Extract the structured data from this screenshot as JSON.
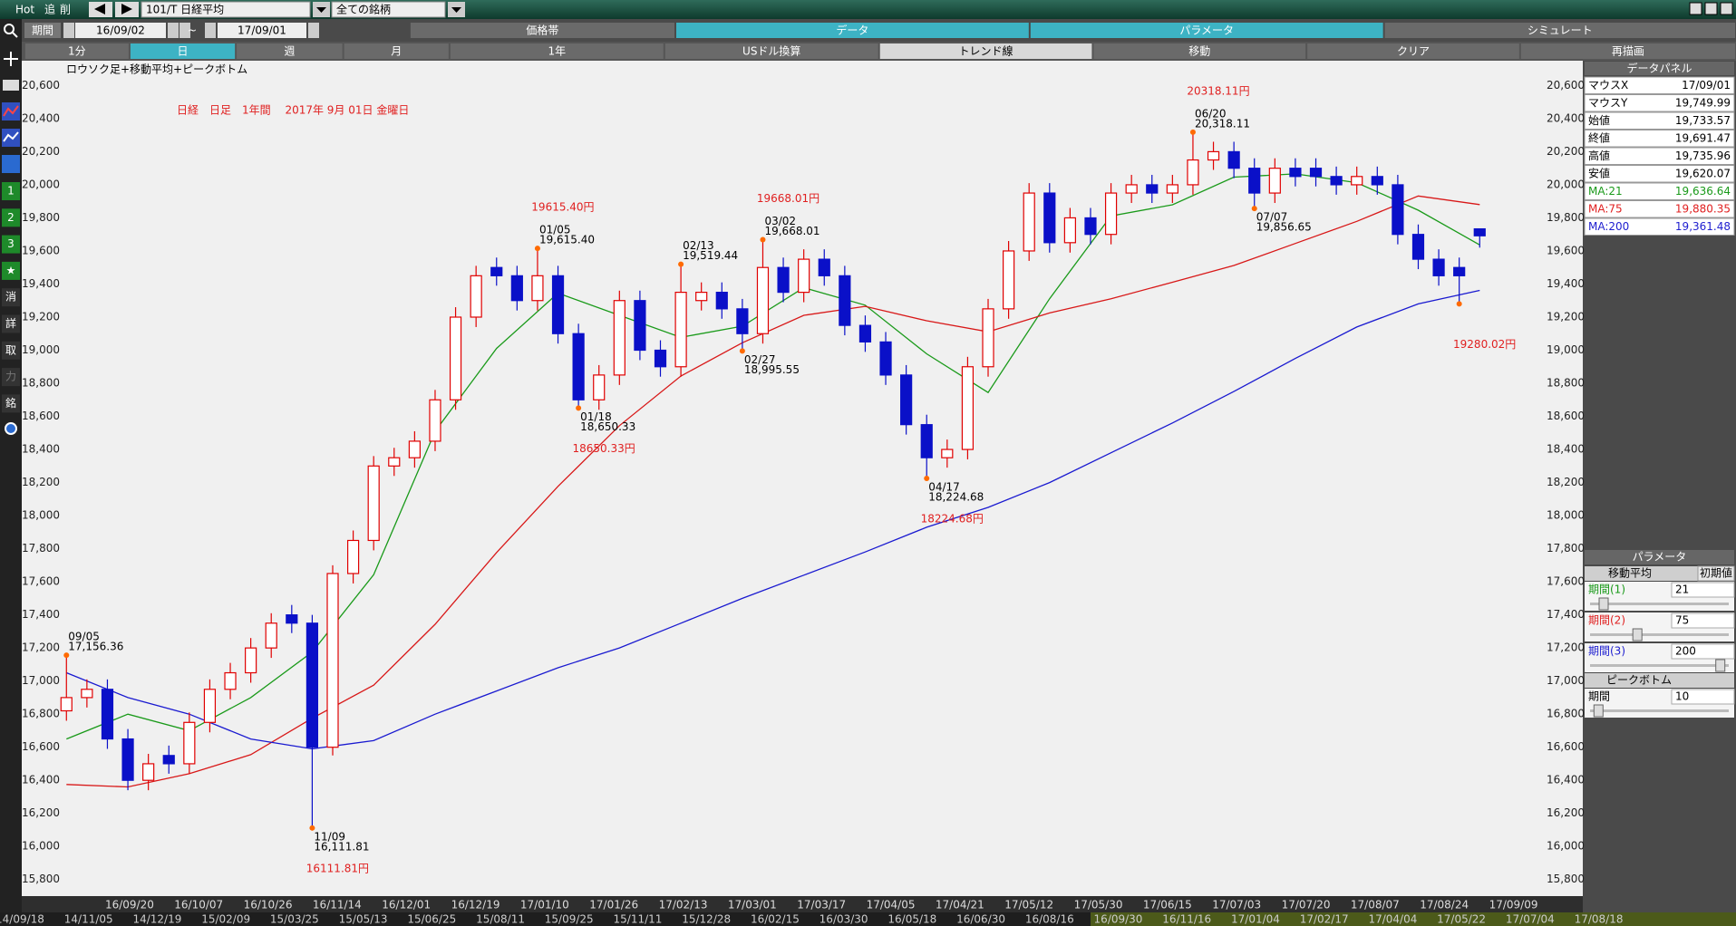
{
  "toolbar": {
    "items": [
      "Hot",
      "追",
      "削"
    ],
    "symbol": "101/T 日経平均",
    "universe": "全ての銘柄",
    "period_label": "期間",
    "from": "16/09/02",
    "sep": "~",
    "to": "17/09/01"
  },
  "tabs": [
    {
      "label": "価格帯",
      "active": false
    },
    {
      "label": "データ",
      "active": true
    },
    {
      "label": "パラメータ",
      "active": true
    },
    {
      "label": "シミュレート",
      "active": false
    }
  ],
  "buttons": [
    {
      "label": "1分",
      "style": "normal"
    },
    {
      "label": "日",
      "style": "active"
    },
    {
      "label": "週",
      "style": "normal"
    },
    {
      "label": "月",
      "style": "normal"
    },
    {
      "label": "1年",
      "style": "normal"
    },
    {
      "label": "USドル換算",
      "style": "normal"
    },
    {
      "label": "トレンド線",
      "style": "light"
    },
    {
      "label": "移動",
      "style": "normal"
    },
    {
      "label": "クリア",
      "style": "normal"
    },
    {
      "label": "再描画",
      "style": "normal"
    }
  ],
  "side_icons": [
    "1",
    "2",
    "3",
    "★",
    "消",
    "詳",
    "取",
    "力",
    "銘"
  ],
  "chart": {
    "type": "candlestick",
    "subtitle": "ロウソク足+移動平均+ピークボトム",
    "title": "日経　日足　1年間　 2017年 9月 01日 金曜日",
    "ylim": [
      15700,
      20750
    ],
    "yticks": [
      {
        "value": 15800,
        "label": "15,800"
      },
      {
        "value": 16000,
        "label": "16,000"
      },
      {
        "value": 16200,
        "label": "16,200"
      },
      {
        "value": 16400,
        "label": "16,400"
      },
      {
        "value": 16600,
        "label": "16,600"
      },
      {
        "value": 16800,
        "label": "16,800"
      },
      {
        "value": 17000,
        "label": "17,000"
      },
      {
        "value": 17200,
        "label": "17,200"
      },
      {
        "value": 17400,
        "label": "17,400"
      },
      {
        "value": 17600,
        "label": "17,600"
      },
      {
        "value": 17800,
        "label": "17,800"
      },
      {
        "value": 18000,
        "label": "18,000"
      },
      {
        "value": 18200,
        "label": "18,200"
      },
      {
        "value": 18400,
        "label": "18,400"
      },
      {
        "value": 18600,
        "label": "18,600"
      },
      {
        "value": 18800,
        "label": "18,800"
      },
      {
        "value": 19000,
        "label": "19,000"
      },
      {
        "value": 19200,
        "label": "19,200"
      },
      {
        "value": 19400,
        "label": "19,400"
      },
      {
        "value": 19600,
        "label": "19,600"
      },
      {
        "value": 19800,
        "label": "19,800"
      },
      {
        "value": 20000,
        "label": "20,000"
      },
      {
        "value": 20200,
        "label": "20,200"
      },
      {
        "value": 20400,
        "label": "20,400"
      },
      {
        "value": 20600,
        "label": "20,600"
      }
    ],
    "xticks": [
      "16/09/20",
      "16/10/07",
      "16/10/26",
      "16/11/14",
      "16/12/01",
      "16/12/19",
      "17/01/10",
      "17/01/26",
      "17/02/13",
      "17/03/01",
      "17/03/17",
      "17/04/05",
      "17/04/21",
      "17/05/12",
      "17/05/30",
      "17/06/15",
      "17/07/03",
      "17/07/20",
      "17/08/07",
      "17/08/24",
      "17/09/09"
    ],
    "overview_dates": [
      "14/09/18",
      "14/11/05",
      "14/12/19",
      "15/02/09",
      "15/03/25",
      "15/05/13",
      "15/06/25",
      "15/08/11",
      "15/09/25",
      "15/11/11",
      "15/12/28",
      "16/02/15",
      "16/03/30",
      "16/05/18",
      "16/06/30",
      "16/08/16",
      "16/09/30",
      "16/11/16",
      "17/01/04",
      "17/02/17",
      "17/04/04",
      "17/05/22",
      "17/07/04",
      "17/08/18"
    ],
    "up_color": "#e00000",
    "down_color": "#0a10c8",
    "peak_color": "#ff6a00",
    "caption_color": "#e02020",
    "candles": [
      {
        "o": 16820,
        "h": 17156.36,
        "l": 16760,
        "c": 16900,
        "peak": {
          "date": "09/05",
          "label": "17,156.36"
        }
      },
      {
        "o": 16900,
        "h": 17010,
        "l": 16840,
        "c": 16950
      },
      {
        "o": 16950,
        "h": 17010,
        "l": 16590,
        "c": 16650
      },
      {
        "o": 16650,
        "h": 16710,
        "l": 16340,
        "c": 16400
      },
      {
        "o": 16400,
        "h": 16560,
        "l": 16340,
        "c": 16500
      },
      {
        "o": 16550,
        "h": 16610,
        "l": 16440,
        "c": 16500
      },
      {
        "o": 16500,
        "h": 16810,
        "l": 16440,
        "c": 16750
      },
      {
        "o": 16750,
        "h": 17010,
        "l": 16690,
        "c": 16950
      },
      {
        "o": 16950,
        "h": 17110,
        "l": 16890,
        "c": 17050
      },
      {
        "o": 17050,
        "h": 17260,
        "l": 16990,
        "c": 17200
      },
      {
        "o": 17200,
        "h": 17410,
        "l": 17140,
        "c": 17350
      },
      {
        "o": 17400,
        "h": 17460,
        "l": 17290,
        "c": 17350
      },
      {
        "o": 17350,
        "h": 17400,
        "l": 16111.81,
        "c": 16600,
        "peak": {
          "date": "11/09",
          "label": "16,111.81",
          "caption": "16111.81円"
        }
      },
      {
        "o": 16600,
        "h": 17700,
        "l": 16550,
        "c": 17650
      },
      {
        "o": 17650,
        "h": 17910,
        "l": 17590,
        "c": 17850
      },
      {
        "o": 17850,
        "h": 18360,
        "l": 17790,
        "c": 18300
      },
      {
        "o": 18300,
        "h": 18410,
        "l": 18240,
        "c": 18350
      },
      {
        "o": 18350,
        "h": 18510,
        "l": 18290,
        "c": 18450
      },
      {
        "o": 18450,
        "h": 18760,
        "l": 18390,
        "c": 18700
      },
      {
        "o": 18700,
        "h": 19260,
        "l": 18640,
        "c": 19200
      },
      {
        "o": 19200,
        "h": 19510,
        "l": 19140,
        "c": 19450
      },
      {
        "o": 19500,
        "h": 19560,
        "l": 19390,
        "c": 19450
      },
      {
        "o": 19450,
        "h": 19510,
        "l": 19240,
        "c": 19300
      },
      {
        "o": 19300,
        "h": 19615.4,
        "l": 19240,
        "c": 19450,
        "peak": {
          "date": "01/05",
          "label": "19,615.40",
          "caption": "19615.40円"
        }
      },
      {
        "o": 19450,
        "h": 19510,
        "l": 19040,
        "c": 19100
      },
      {
        "o": 19100,
        "h": 19160,
        "l": 18650.33,
        "c": 18700,
        "peak": {
          "date": "01/18",
          "label": "18,650.33",
          "caption": "18650.33円"
        }
      },
      {
        "o": 18700,
        "h": 18910,
        "l": 18640,
        "c": 18850
      },
      {
        "o": 18850,
        "h": 19360,
        "l": 18790,
        "c": 19300
      },
      {
        "o": 19300,
        "h": 19360,
        "l": 18940,
        "c": 19000
      },
      {
        "o": 19000,
        "h": 19060,
        "l": 18840,
        "c": 18900
      },
      {
        "o": 18900,
        "h": 19519.44,
        "l": 18840,
        "c": 19350,
        "peak": {
          "date": "02/13",
          "label": "19,519.44"
        }
      },
      {
        "o": 19300,
        "h": 19410,
        "l": 19240,
        "c": 19350
      },
      {
        "o": 19350,
        "h": 19410,
        "l": 19190,
        "c": 19250
      },
      {
        "o": 19250,
        "h": 19310,
        "l": 18995.55,
        "c": 19100,
        "peak": {
          "date": "02/27",
          "label": "18,995.55"
        }
      },
      {
        "o": 19100,
        "h": 19668.01,
        "l": 19040,
        "c": 19500,
        "peak": {
          "date": "03/02",
          "label": "19,668.01",
          "caption": "19668.01円"
        }
      },
      {
        "o": 19500,
        "h": 19560,
        "l": 19290,
        "c": 19350
      },
      {
        "o": 19350,
        "h": 19610,
        "l": 19290,
        "c": 19550
      },
      {
        "o": 19550,
        "h": 19610,
        "l": 19390,
        "c": 19450
      },
      {
        "o": 19450,
        "h": 19510,
        "l": 19090,
        "c": 19150
      },
      {
        "o": 19150,
        "h": 19210,
        "l": 18990,
        "c": 19050
      },
      {
        "o": 19050,
        "h": 19110,
        "l": 18790,
        "c": 18850
      },
      {
        "o": 18850,
        "h": 18910,
        "l": 18490,
        "c": 18550
      },
      {
        "o": 18550,
        "h": 18610,
        "l": 18224.68,
        "c": 18350,
        "peak": {
          "date": "04/17",
          "label": "18,224.68",
          "caption": "18224.68円"
        }
      },
      {
        "o": 18350,
        "h": 18460,
        "l": 18290,
        "c": 18400
      },
      {
        "o": 18400,
        "h": 18960,
        "l": 18340,
        "c": 18900
      },
      {
        "o": 18900,
        "h": 19310,
        "l": 18840,
        "c": 19250
      },
      {
        "o": 19250,
        "h": 19660,
        "l": 19190,
        "c": 19600
      },
      {
        "o": 19600,
        "h": 20010,
        "l": 19540,
        "c": 19950
      },
      {
        "o": 19950,
        "h": 20010,
        "l": 19590,
        "c": 19650
      },
      {
        "o": 19650,
        "h": 19860,
        "l": 19590,
        "c": 19800
      },
      {
        "o": 19800,
        "h": 19860,
        "l": 19640,
        "c": 19700
      },
      {
        "o": 19700,
        "h": 20010,
        "l": 19640,
        "c": 19950
      },
      {
        "o": 19950,
        "h": 20060,
        "l": 19890,
        "c": 20000
      },
      {
        "o": 20000,
        "h": 20060,
        "l": 19890,
        "c": 19950
      },
      {
        "o": 19950,
        "h": 20060,
        "l": 19890,
        "c": 20000
      },
      {
        "o": 20000,
        "h": 20318.11,
        "l": 19940,
        "c": 20150,
        "peak": {
          "date": "06/20",
          "label": "20,318.11",
          "caption": "20318.11円"
        }
      },
      {
        "o": 20150,
        "h": 20260,
        "l": 20090,
        "c": 20200
      },
      {
        "o": 20200,
        "h": 20260,
        "l": 20040,
        "c": 20100
      },
      {
        "o": 20100,
        "h": 20160,
        "l": 19856.65,
        "c": 19950,
        "peak": {
          "date": "07/07",
          "label": "19,856.65"
        }
      },
      {
        "o": 19950,
        "h": 20160,
        "l": 19890,
        "c": 20100
      },
      {
        "o": 20100,
        "h": 20160,
        "l": 19990,
        "c": 20050
      },
      {
        "o": 20100,
        "h": 20160,
        "l": 19990,
        "c": 20050
      },
      {
        "o": 20050,
        "h": 20110,
        "l": 19940,
        "c": 20000
      },
      {
        "o": 20000,
        "h": 20110,
        "l": 19940,
        "c": 20050
      },
      {
        "o": 20050,
        "h": 20110,
        "l": 19940,
        "c": 20000
      },
      {
        "o": 20000,
        "h": 20060,
        "l": 19640,
        "c": 19700
      },
      {
        "o": 19700,
        "h": 19760,
        "l": 19490,
        "c": 19550
      },
      {
        "o": 19550,
        "h": 19610,
        "l": 19390,
        "c": 19450
      },
      {
        "o": 19500,
        "h": 19560,
        "l": 19280.02,
        "c": 19450,
        "peak": {
          "caption": "19280.02円"
        }
      },
      {
        "o": 19733.57,
        "h": 19735.96,
        "l": 19620.07,
        "c": 19691.47
      }
    ],
    "series": [
      {
        "color": "#1a9a1a",
        "values": [
          16650,
          16800,
          16700,
          16900,
          17175,
          17643,
          18510,
          19011,
          19345,
          19211,
          19078,
          19145,
          19378,
          19272,
          18978,
          18744,
          19311,
          19812,
          19879,
          20046,
          20066,
          20013,
          19846,
          19636.64
        ]
      },
      {
        "color": "#d81818",
        "values": [
          16375,
          16360,
          16440,
          16555,
          16775,
          16975,
          17343,
          17777,
          18177,
          18544,
          18844,
          19045,
          19211,
          19265,
          19178,
          19111,
          19225,
          19311,
          19411,
          19512,
          19645,
          19779,
          19932,
          19880.35
        ]
      },
      {
        "color": "#1a1ad0",
        "values": [
          17050,
          16900,
          16800,
          16650,
          16590,
          16640,
          16800,
          16940,
          17080,
          17200,
          17350,
          17500,
          17640,
          17780,
          17930,
          18050,
          18200,
          18380,
          18560,
          18750,
          18950,
          19140,
          19280,
          19361.48
        ]
      }
    ]
  },
  "data_panel": {
    "title": "データパネル",
    "rows": [
      {
        "label": "マウスX",
        "value": "17/09/01"
      },
      {
        "label": "マウスY",
        "value": "19,749.99"
      },
      {
        "label": "始値",
        "value": "19,733.57"
      },
      {
        "label": "終値",
        "value": "19,691.47"
      },
      {
        "label": "高値",
        "value": "19,735.96"
      },
      {
        "label": "安値",
        "value": "19,620.07"
      },
      {
        "label": "MA:21",
        "value": "19,636.64",
        "color": "#1a9a1a"
      },
      {
        "label": "MA:75",
        "value": "19,880.35",
        "color": "#e02020"
      },
      {
        "label": "MA:200",
        "value": "19,361.48",
        "color": "#2020d0"
      }
    ]
  },
  "param_panel": {
    "title": "パラメータ",
    "section": "移動平均",
    "reset": "初期値",
    "rows": [
      {
        "label": "期間(1)",
        "value": "21",
        "color": "#1a9a1a"
      },
      {
        "label": "期間(2)",
        "value": "75",
        "color": "#e02020"
      },
      {
        "label": "期間(3)",
        "value": "200",
        "color": "#2020d0"
      }
    ],
    "peak_title": "ピークボトム",
    "peak_rows": [
      {
        "label": "期間",
        "value": "10",
        "color": "#000000"
      }
    ]
  }
}
